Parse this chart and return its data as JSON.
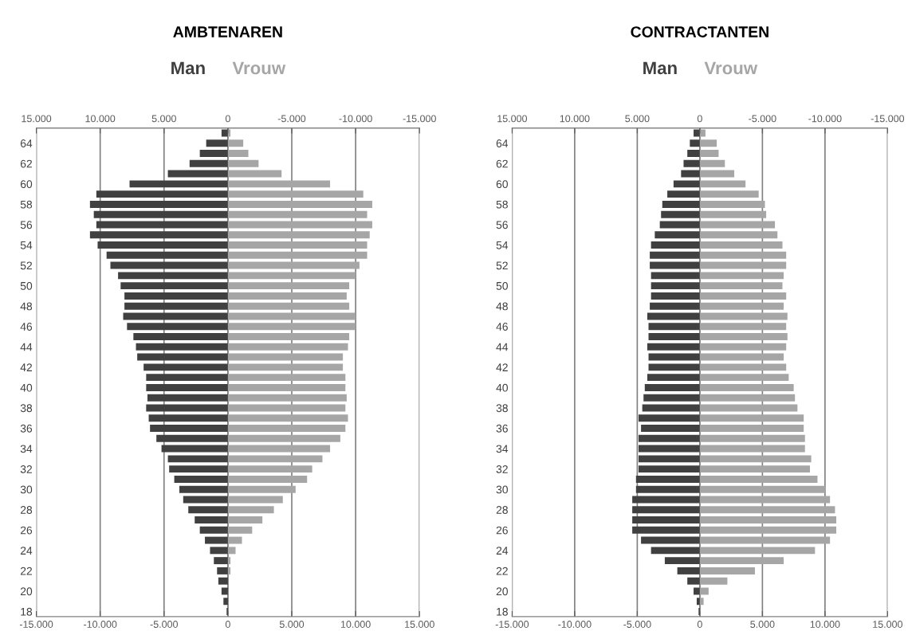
{
  "chart_data": [
    {
      "type": "bar",
      "orientation": "horizontal",
      "title": "AMBTENAREN",
      "categories": [
        null,
        "64",
        null,
        "62",
        null,
        "60",
        null,
        "58",
        null,
        "56",
        null,
        "54",
        null,
        "52",
        null,
        "50",
        null,
        "48",
        null,
        "46",
        null,
        "44",
        null,
        "42",
        null,
        "40",
        null,
        "38",
        null,
        "36",
        null,
        "34",
        null,
        "32",
        null,
        "30",
        null,
        "28",
        null,
        "26",
        null,
        "24",
        null,
        "22",
        null,
        "20",
        null,
        "18"
      ],
      "series": [
        {
          "name": "Man",
          "color": "#404040",
          "values": [
            -500,
            -1700,
            -2200,
            -3000,
            -4700,
            -7700,
            -10300,
            -10800,
            -10500,
            -10300,
            -10800,
            -10200,
            -9500,
            -9200,
            -8600,
            -8400,
            -8100,
            -8100,
            -8200,
            -7900,
            -7400,
            -7200,
            -7100,
            -6600,
            -6400,
            -6400,
            -6300,
            -6400,
            -6200,
            -6100,
            -5600,
            -5200,
            -4700,
            -4600,
            -4200,
            -3800,
            -3500,
            -3100,
            -2600,
            -2200,
            -1800,
            -1400,
            -1100,
            -850,
            -750,
            -500,
            -350,
            -100
          ]
        },
        {
          "name": "Vrouw",
          "color": "#a6a6a6",
          "values": [
            200,
            1200,
            1600,
            2400,
            4200,
            8000,
            10600,
            11300,
            10900,
            11300,
            11100,
            10900,
            10900,
            10300,
            10000,
            9500,
            9300,
            9500,
            10000,
            10000,
            9500,
            9400,
            9000,
            9000,
            9200,
            9200,
            9300,
            9200,
            9400,
            9200,
            8800,
            8000,
            7400,
            6600,
            6200,
            5300,
            4300,
            3600,
            2700,
            1900,
            1100,
            600,
            200,
            200,
            null,
            null,
            0,
            0
          ]
        }
      ],
      "xlim": [
        -15000,
        15000
      ],
      "xticks": [
        {
          "value": -15000,
          "label": "-15.000"
        },
        {
          "value": -10000,
          "label": "-10.000"
        },
        {
          "value": -5000,
          "label": "-5.000"
        },
        0,
        {
          "value": 5000,
          "label": "5.000"
        },
        {
          "value": 10000,
          "label": "10.000"
        },
        {
          "value": 15000,
          "label": "15.000"
        }
      ],
      "x2lim": [
        15000,
        -15000
      ],
      "x2ticks": [
        {
          "value": 15000,
          "label": "15.000"
        },
        {
          "value": 10000,
          "label": "10.000"
        },
        {
          "value": 5000,
          "label": "5.000"
        },
        0,
        {
          "value": -5000,
          "label": "-5.000"
        },
        {
          "value": -10000,
          "label": "-10.000"
        },
        {
          "value": -15000,
          "label": "-15.000"
        }
      ],
      "grid": "x",
      "legend": "top",
      "stacked": true
    },
    {
      "type": "bar",
      "orientation": "horizontal",
      "title": "CONTRACTANTEN",
      "categories": [
        null,
        "64",
        null,
        "62",
        null,
        "60",
        null,
        "58",
        null,
        "56",
        null,
        "54",
        null,
        "52",
        null,
        "50",
        null,
        "48",
        null,
        "46",
        null,
        "44",
        null,
        "42",
        null,
        "40",
        null,
        "38",
        null,
        "36",
        null,
        "34",
        null,
        "32",
        null,
        "30",
        null,
        "28",
        null,
        "26",
        null,
        "24",
        null,
        "22",
        null,
        "20",
        null,
        "18"
      ],
      "series": [
        {
          "name": "Man",
          "color": "#404040",
          "values": [
            -500,
            -800,
            -1000,
            -1300,
            -1500,
            -2100,
            -2600,
            -3000,
            -3100,
            -3200,
            -3600,
            -3900,
            -4000,
            -4000,
            -3900,
            -3900,
            -3900,
            -4000,
            -4200,
            -4100,
            -4100,
            -4200,
            -4100,
            -4100,
            -4200,
            -4400,
            -4500,
            -4600,
            -4900,
            -4700,
            -4900,
            -4900,
            -4900,
            -4900,
            -5100,
            -5100,
            -5400,
            -5400,
            -5400,
            -5400,
            -4700,
            -3900,
            -2800,
            -1800,
            -1000,
            -500,
            -250,
            -100
          ]
        },
        {
          "name": "Vrouw",
          "color": "#a6a6a6",
          "values": [
            450,
            1350,
            1500,
            2000,
            2750,
            3650,
            4700,
            5200,
            5300,
            6000,
            6200,
            6600,
            6900,
            6900,
            6700,
            6600,
            6900,
            6700,
            7000,
            6900,
            7000,
            6900,
            6700,
            6900,
            7100,
            7500,
            7600,
            7800,
            8300,
            8300,
            8400,
            8400,
            8900,
            8800,
            9400,
            10000,
            10400,
            10800,
            10900,
            10900,
            10400,
            9200,
            6700,
            4400,
            2200,
            700,
            300,
            0
          ]
        }
      ],
      "xlim": [
        -15000,
        15000
      ],
      "xticks": [
        {
          "value": -15000,
          "label": "-15.000"
        },
        {
          "value": -10000,
          "label": "-10.000"
        },
        {
          "value": -5000,
          "label": "-5.000"
        },
        0,
        {
          "value": 5000,
          "label": "5.000"
        },
        {
          "value": 10000,
          "label": "10.000"
        },
        {
          "value": 15000,
          "label": "15.000"
        }
      ],
      "x2lim": [
        15000,
        -15000
      ],
      "x2ticks": [
        {
          "value": 15000,
          "label": "15.000"
        },
        {
          "value": 10000,
          "label": "10.000"
        },
        {
          "value": 5000,
          "label": "5.000"
        },
        0,
        {
          "value": -5000,
          "label": "-5.000"
        },
        {
          "value": -10000,
          "label": "-10.000"
        },
        {
          "value": -15000,
          "label": "-15.000"
        }
      ],
      "grid": "x",
      "legend": "top",
      "stacked": true
    }
  ]
}
